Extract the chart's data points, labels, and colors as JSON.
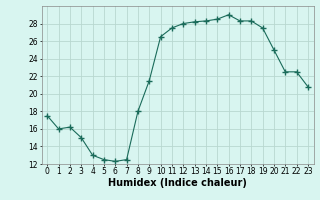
{
  "x": [
    0,
    1,
    2,
    3,
    4,
    5,
    6,
    7,
    8,
    9,
    10,
    11,
    12,
    13,
    14,
    15,
    16,
    17,
    18,
    19,
    20,
    21,
    22,
    23
  ],
  "y": [
    17.5,
    16.0,
    16.2,
    15.0,
    13.0,
    12.5,
    12.3,
    12.5,
    18.0,
    21.5,
    26.5,
    27.5,
    28.0,
    28.2,
    28.3,
    28.5,
    29.0,
    28.3,
    28.3,
    27.5,
    25.0,
    22.5,
    22.5,
    20.8
  ],
  "line_color": "#1a6b5a",
  "marker": "+",
  "marker_size": 4,
  "bg_color": "#d8f5f0",
  "grid_color": "#b8d8d0",
  "xlabel": "Humidex (Indice chaleur)",
  "xlim": [
    -0.5,
    23.5
  ],
  "ylim": [
    12,
    30
  ],
  "yticks": [
    12,
    14,
    16,
    18,
    20,
    22,
    24,
    26,
    28
  ],
  "xticks": [
    0,
    1,
    2,
    3,
    4,
    5,
    6,
    7,
    8,
    9,
    10,
    11,
    12,
    13,
    14,
    15,
    16,
    17,
    18,
    19,
    20,
    21,
    22,
    23
  ],
  "xtick_labels": [
    "0",
    "1",
    "2",
    "3",
    "4",
    "5",
    "6",
    "7",
    "8",
    "9",
    "10",
    "11",
    "12",
    "13",
    "14",
    "15",
    "16",
    "17",
    "18",
    "19",
    "20",
    "21",
    "22",
    "23"
  ],
  "tick_label_fontsize": 5.5,
  "xlabel_fontsize": 7,
  "spine_color": "#888888",
  "lw": 0.8
}
